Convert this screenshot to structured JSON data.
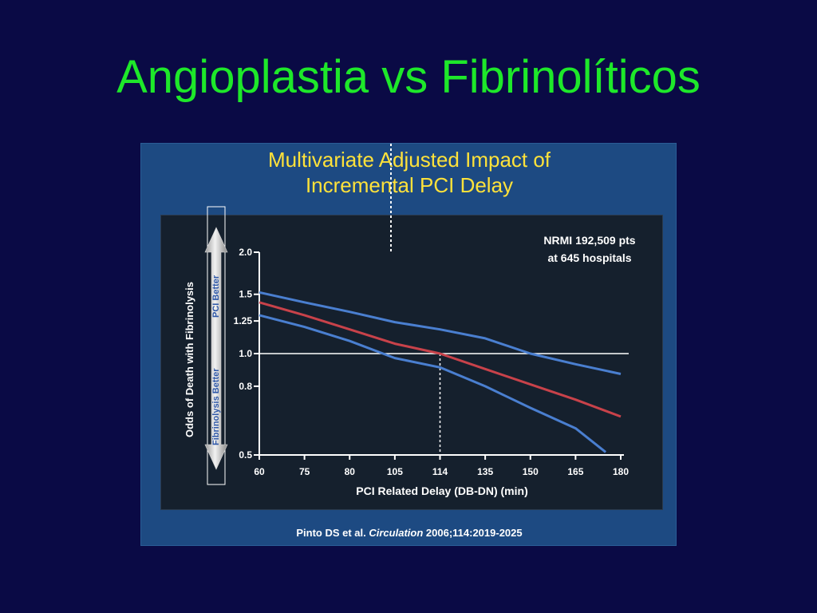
{
  "slide": {
    "title": "Angioplastia vs Fibrinolíticos"
  },
  "figure": {
    "title_line1": "Multivariate Adjusted Impact of",
    "title_line2": "Incremental PCI Delay",
    "citation_author": "Pinto DS et al. ",
    "citation_journal": "Circulation",
    "citation_rest": " 2006;114:2019-2025"
  },
  "chart_data": {
    "type": "line",
    "xlabel": "PCI Related Delay (DB-DN) (min)",
    "ylabel": "Odds of Death with Fibrinolysis",
    "x_ticks": [
      "60",
      "75",
      "80",
      "105",
      "114",
      "135",
      "150",
      "165",
      "180"
    ],
    "y_ticks": [
      "2.0",
      "1.5",
      "1.25",
      "1.0",
      "0.8",
      "0.5"
    ],
    "y_tick_values": [
      2.0,
      1.5,
      1.25,
      1.0,
      0.8,
      0.5
    ],
    "y_scale": "log",
    "ylim": [
      0.5,
      2.0
    ],
    "reference_line": 1.0,
    "crossover_x": "114",
    "annotation_line1": "NRMI 192,509 pts",
    "annotation_line2": "at 645 hospitals",
    "arrow_up_label": "PCI Better",
    "arrow_down_label": "Fibrinolysis Better",
    "series": [
      {
        "role": "upper-ci",
        "color": "#4a7fd0",
        "points": [
          [
            "60",
            1.52
          ],
          [
            "75",
            1.42
          ],
          [
            "80",
            1.33
          ],
          [
            "105",
            1.24
          ],
          [
            "114",
            1.18
          ],
          [
            "135",
            1.11
          ],
          [
            "150",
            1.0
          ],
          [
            "165",
            0.93
          ],
          [
            "180",
            0.87
          ]
        ]
      },
      {
        "role": "estimate",
        "color": "#c8424a",
        "points": [
          [
            "60",
            1.42
          ],
          [
            "75",
            1.3
          ],
          [
            "80",
            1.18
          ],
          [
            "105",
            1.07
          ],
          [
            "114",
            1.0
          ],
          [
            "135",
            0.9
          ],
          [
            "150",
            0.81
          ],
          [
            "165",
            0.73
          ],
          [
            "180",
            0.65
          ]
        ]
      },
      {
        "role": "lower-ci",
        "color": "#4a7fd0",
        "points": [
          [
            "60",
            1.3
          ],
          [
            "75",
            1.2
          ],
          [
            "80",
            1.09
          ],
          [
            "105",
            0.97
          ],
          [
            "114",
            0.91
          ],
          [
            "135",
            0.8
          ],
          [
            "150",
            0.69
          ],
          [
            "165",
            0.6
          ],
          [
            "175",
            0.51
          ]
        ]
      }
    ],
    "colors": {
      "axis": "#ffffff",
      "reference": "#ffffff",
      "plot_background": "#15202d",
      "panel_background": "#1d4a82"
    }
  }
}
